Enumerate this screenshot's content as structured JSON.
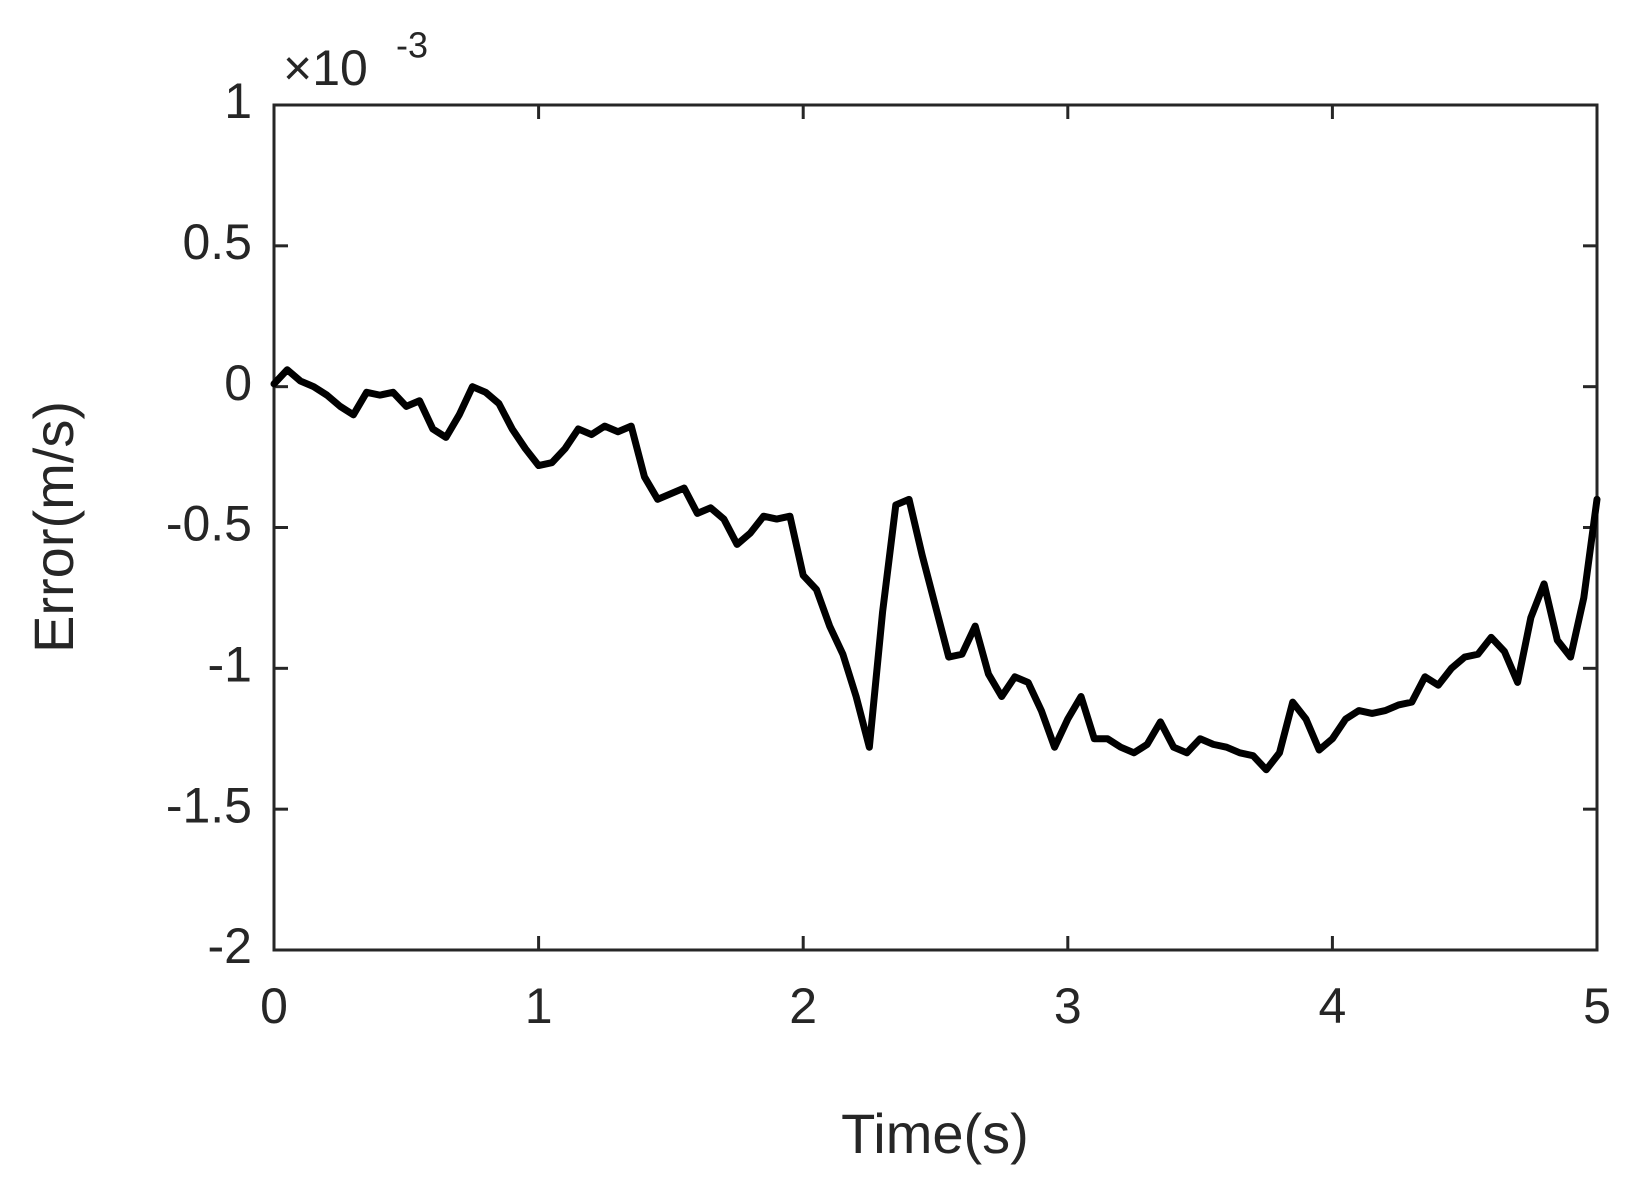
{
  "chart_data": {
    "type": "line",
    "x_label": "Time(s)",
    "y_label": "Error(m/s)",
    "y_multiplier": {
      "base": "×10",
      "exponent": "-3"
    },
    "x": [
      0,
      0.05,
      0.1,
      0.15,
      0.2,
      0.25,
      0.3,
      0.35,
      0.4,
      0.45,
      0.5,
      0.55,
      0.6,
      0.65,
      0.7,
      0.75,
      0.8,
      0.85,
      0.9,
      0.95,
      1,
      1.05,
      1.1,
      1.15,
      1.2,
      1.25,
      1.3,
      1.35,
      1.4,
      1.45,
      1.5,
      1.55,
      1.6,
      1.65,
      1.7,
      1.75,
      1.8,
      1.85,
      1.9,
      1.95,
      2,
      2.05,
      2.1,
      2.15,
      2.2,
      2.25,
      2.3,
      2.35,
      2.4,
      2.45,
      2.5,
      2.55,
      2.6,
      2.65,
      2.7,
      2.75,
      2.8,
      2.85,
      2.9,
      2.95,
      3,
      3.05,
      3.1,
      3.15,
      3.2,
      3.25,
      3.3,
      3.35,
      3.4,
      3.45,
      3.5,
      3.55,
      3.6,
      3.65,
      3.7,
      3.75,
      3.8,
      3.85,
      3.9,
      3.95,
      4,
      4.05,
      4.1,
      4.15,
      4.2,
      4.25,
      4.3,
      4.35,
      4.4,
      4.45,
      4.5,
      4.55,
      4.6,
      4.65,
      4.7,
      4.75,
      4.8,
      4.85,
      4.9,
      4.95,
      5
    ],
    "series": [
      {
        "color": "#000000",
        "values": [
          0.01,
          0.06,
          0.02,
          0,
          -0.03,
          -0.07,
          -0.1,
          -0.02,
          -0.03,
          -0.02,
          -0.07,
          -0.05,
          -0.15,
          -0.18,
          -0.1,
          0,
          -0.02,
          -0.06,
          -0.15,
          -0.22,
          -0.28,
          -0.27,
          -0.22,
          -0.15,
          -0.17,
          -0.14,
          -0.16,
          -0.14,
          -0.32,
          -0.4,
          -0.38,
          -0.36,
          -0.45,
          -0.43,
          -0.47,
          -0.56,
          -0.52,
          -0.46,
          -0.47,
          -0.46,
          -0.67,
          -0.72,
          -0.85,
          -0.95,
          -1.1,
          -1.28,
          -0.8,
          -0.42,
          -0.4,
          -0.6,
          -0.78,
          -0.96,
          -0.95,
          -0.85,
          -1.02,
          -1.1,
          -1.03,
          -1.05,
          -1.15,
          -1.28,
          -1.18,
          -1.1,
          -1.25,
          -1.25,
          -1.28,
          -1.3,
          -1.27,
          -1.19,
          -1.28,
          -1.3,
          -1.25,
          -1.27,
          -1.28,
          -1.3,
          -1.31,
          -1.36,
          -1.3,
          -1.12,
          -1.18,
          -1.29,
          -1.25,
          -1.18,
          -1.15,
          -1.16,
          -1.15,
          -1.13,
          -1.12,
          -1.03,
          -1.06,
          -1,
          -0.96,
          -0.95,
          -0.89,
          -0.94,
          -1.05,
          -0.82,
          -0.7,
          -0.9,
          -0.96,
          -0.75,
          -0.4
        ]
      }
    ],
    "xlim": [
      0,
      5
    ],
    "xticks": [
      0,
      1,
      2,
      3,
      4,
      5
    ],
    "ylim": [
      -2,
      1
    ],
    "yticks": [
      -2,
      -1.5,
      -1,
      -0.5,
      0,
      0.5,
      1
    ],
    "grid": false
  }
}
